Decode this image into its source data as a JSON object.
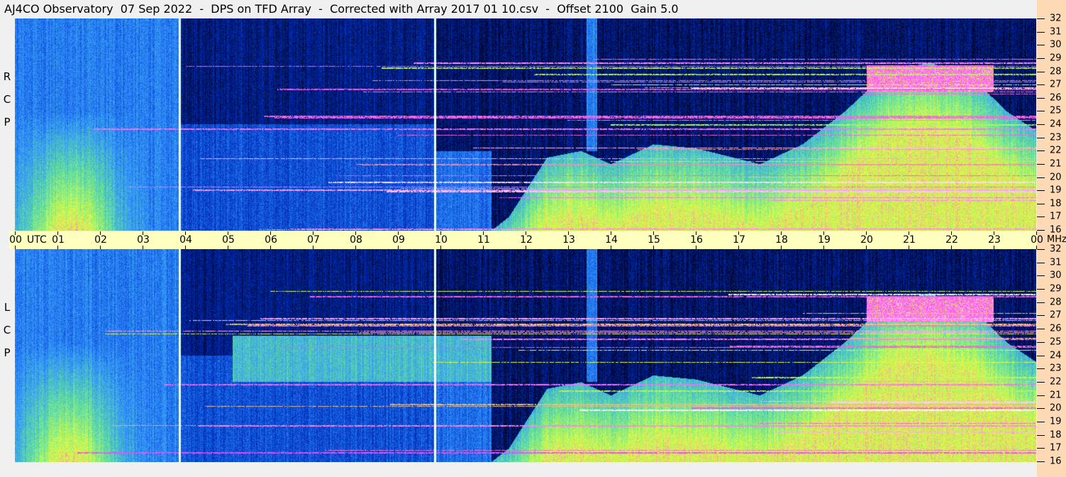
{
  "title": "AJ4CO Observatory  07 Sep 2022  -  DPS on TFD Array  -  Corrected with Array 2017 01 10.csv  -  Offset 2100  Gain 5.0",
  "chart_data": {
    "type": "heatmap",
    "title": "AJ4CO Observatory  07 Sep 2022  -  DPS on TFD Array  -  Corrected with Array 2017 01 10.csv  -  Offset 2100  Gain 5.0",
    "x_unit": "UTC",
    "y_unit": "MHz",
    "x_ticks": [
      "00",
      "01",
      "02",
      "03",
      "04",
      "05",
      "06",
      "07",
      "08",
      "09",
      "10",
      "11",
      "12",
      "13",
      "14",
      "15",
      "16",
      "17",
      "18",
      "19",
      "20",
      "21",
      "22",
      "23",
      "00"
    ],
    "y_ticks": [
      "16",
      "17",
      "18",
      "19",
      "20",
      "21",
      "22",
      "23",
      "24",
      "25",
      "26",
      "27",
      "28",
      "29",
      "30",
      "31",
      "32"
    ],
    "xlim_hours": [
      0,
      24
    ],
    "ylim_mhz": [
      16,
      32
    ],
    "markers_utc_hours": [
      3.87,
      9.87
    ],
    "panels": [
      {
        "polarization": [
          "R",
          "C",
          "P"
        ]
      },
      {
        "polarization": [
          "L",
          "C",
          "P"
        ]
      }
    ],
    "colormap": [
      "#000020",
      "#0030c0",
      "#3090ff",
      "#60e0a0",
      "#e0ff40",
      "#ff40ff",
      "#ffffff"
    ]
  }
}
